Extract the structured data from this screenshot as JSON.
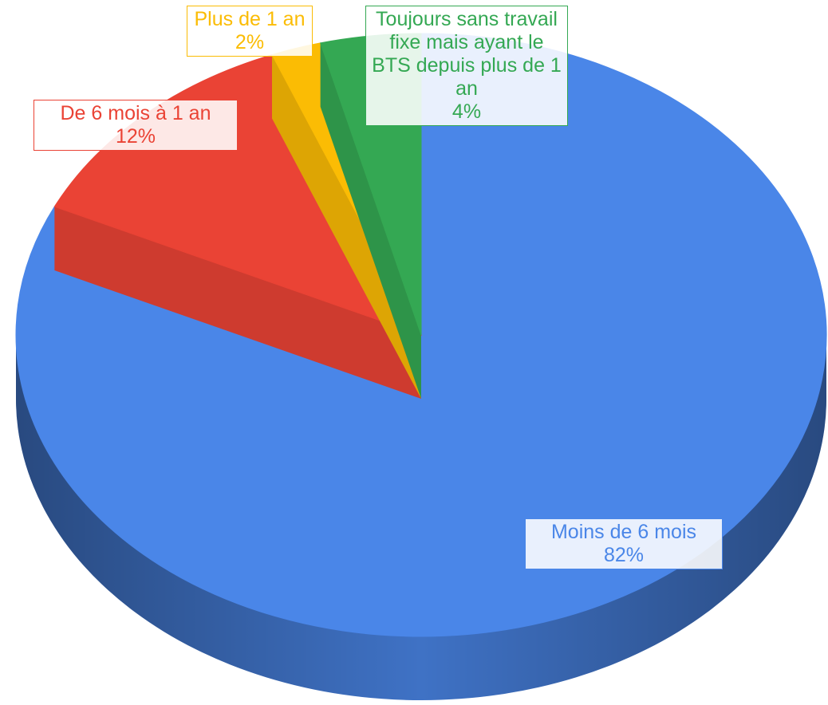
{
  "chart_data": {
    "type": "pie",
    "categories": [
      "Moins de 6 mois",
      "De 6 mois à 1 an",
      "Plus de 1 an",
      "Toujours sans travail fixe mais ayant le BTS depuis plus de 1 an"
    ],
    "values": [
      82,
      12,
      2,
      4
    ],
    "value_labels": [
      "82%",
      "12%",
      "2%",
      "4%"
    ],
    "colors": [
      "#4a86e8",
      "#ea4335",
      "#fbbc04",
      "#34a853"
    ]
  }
}
